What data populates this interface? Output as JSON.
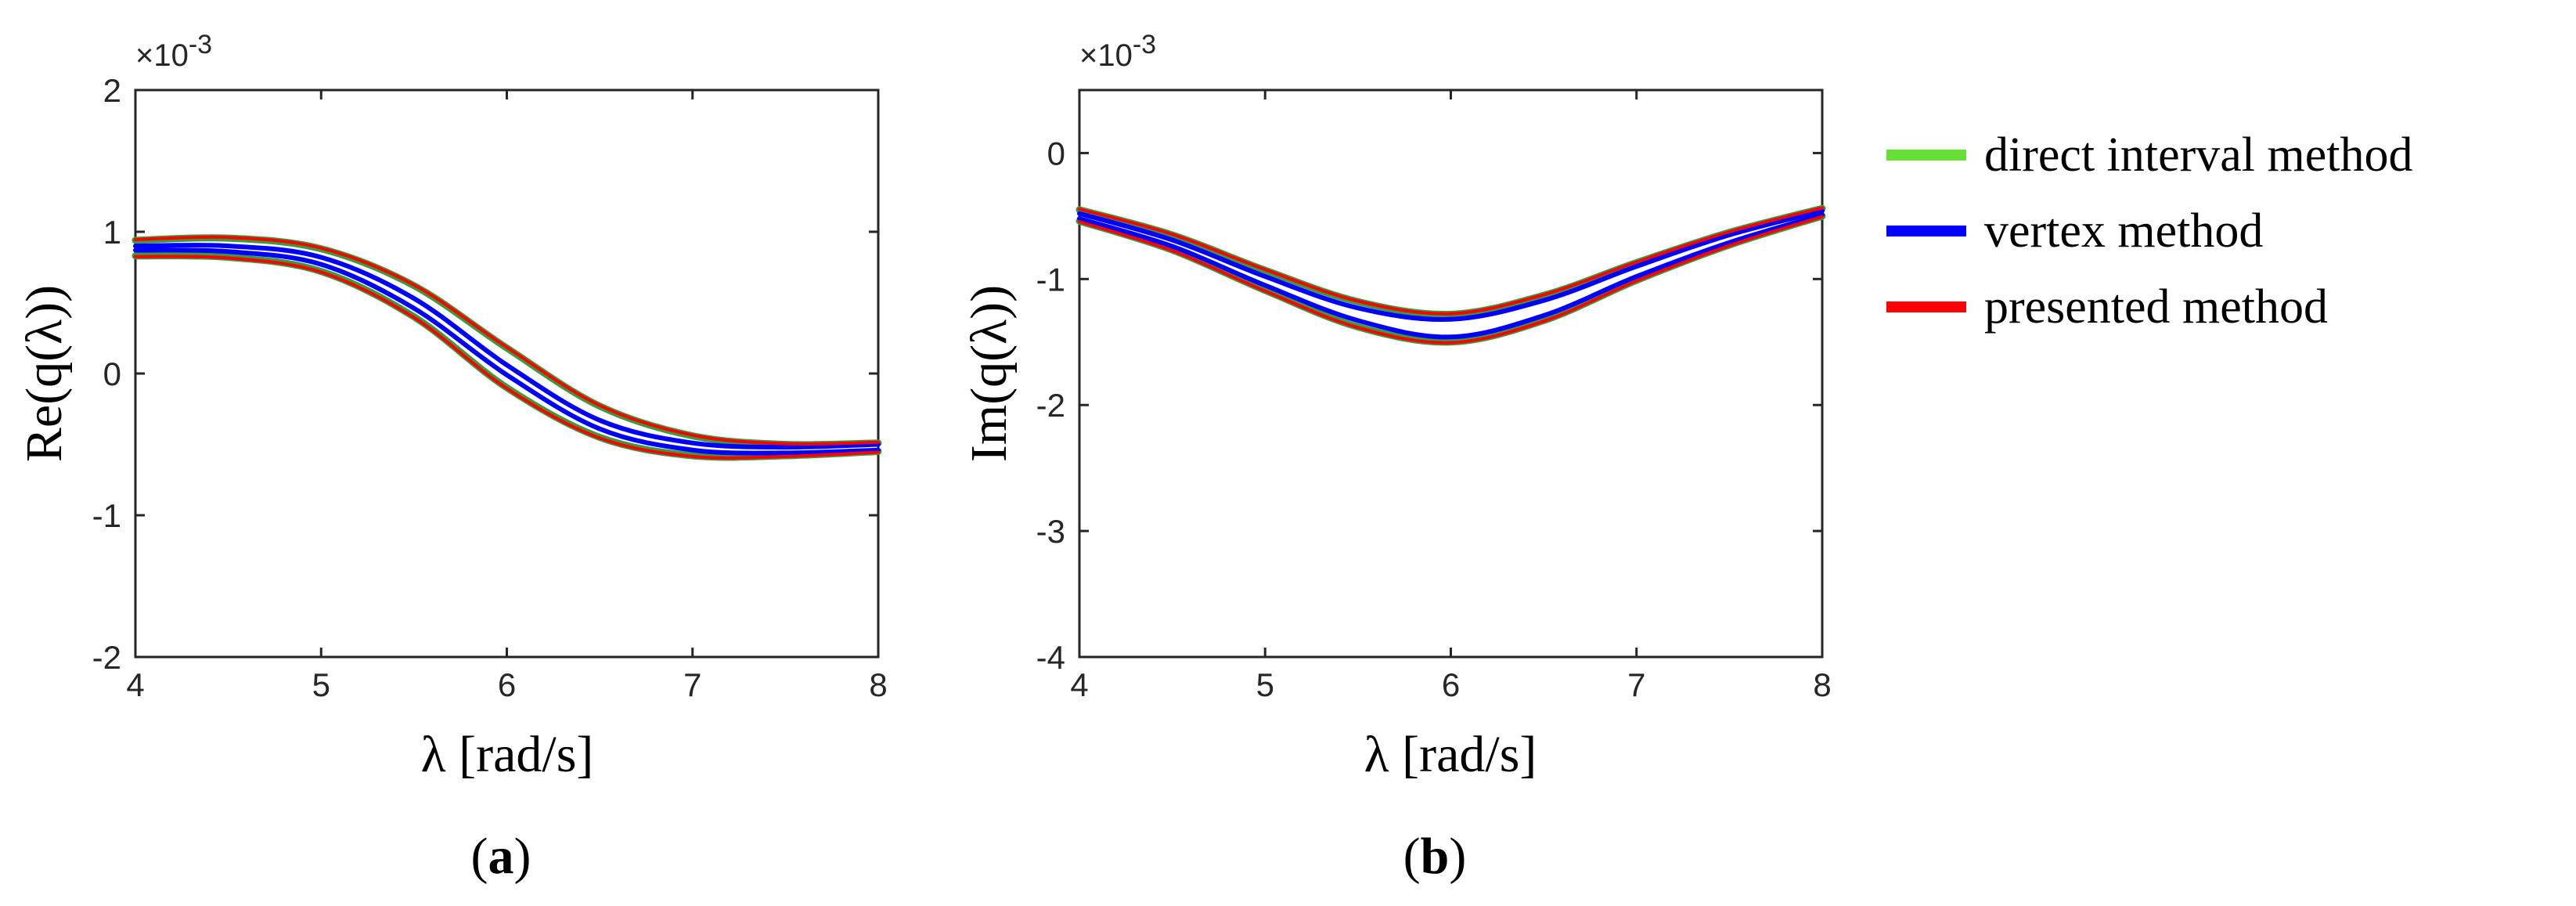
{
  "chart_data": [
    {
      "type": "line",
      "panel": "a",
      "caption_open": "(",
      "caption_letter": "a",
      "caption_close": ")",
      "ylabel": "Re(q(λ))",
      "xlabel": "λ [rad/s]",
      "multiplier_base": "×10",
      "multiplier_exp": "-3",
      "xlim": [
        4,
        8
      ],
      "ylim": [
        -2,
        2
      ],
      "xticks": [
        "4",
        "5",
        "6",
        "7",
        "8"
      ],
      "yticks": [
        "-2",
        "-1",
        "0",
        "1",
        "2"
      ],
      "x": [
        4.0,
        4.5,
        5.0,
        5.5,
        6.0,
        6.5,
        7.0,
        7.5,
        8.0
      ],
      "series": [
        {
          "name": "direct interval method",
          "bound": "upper",
          "values": [
            0.94,
            0.955,
            0.88,
            0.62,
            0.18,
            -0.23,
            -0.44,
            -0.5,
            -0.49
          ]
        },
        {
          "name": "direct interval method",
          "bound": "lower",
          "values": [
            0.83,
            0.82,
            0.72,
            0.4,
            -0.1,
            -0.45,
            -0.58,
            -0.58,
            -0.55
          ]
        },
        {
          "name": "vertex method",
          "bound": "upper",
          "values": [
            0.9,
            0.9,
            0.82,
            0.53,
            0.06,
            -0.33,
            -0.49,
            -0.52,
            -0.5
          ]
        },
        {
          "name": "vertex method",
          "bound": "lower",
          "values": [
            0.87,
            0.86,
            0.77,
            0.46,
            -0.01,
            -0.39,
            -0.54,
            -0.56,
            -0.54
          ]
        },
        {
          "name": "presented method",
          "bound": "upper",
          "values": [
            0.945,
            0.96,
            0.885,
            0.625,
            0.185,
            -0.225,
            -0.435,
            -0.495,
            -0.485
          ]
        },
        {
          "name": "presented method",
          "bound": "lower",
          "values": [
            0.825,
            0.815,
            0.715,
            0.395,
            -0.105,
            -0.455,
            -0.585,
            -0.585,
            -0.555
          ]
        }
      ]
    },
    {
      "type": "line",
      "panel": "b",
      "caption_open": "(",
      "caption_letter": "b",
      "caption_close": ")",
      "ylabel": "Im(q(λ))",
      "xlabel": "λ [rad/s]",
      "multiplier_base": "×10",
      "multiplier_exp": "-3",
      "xlim": [
        4,
        8
      ],
      "ylim": [
        -4,
        0.5
      ],
      "xticks": [
        "4",
        "5",
        "6",
        "7",
        "8"
      ],
      "yticks": [
        "-4",
        "-3",
        "-2",
        "-1",
        "0"
      ],
      "x": [
        4.0,
        4.5,
        5.0,
        5.5,
        6.0,
        6.5,
        7.0,
        7.5,
        8.0
      ],
      "series": [
        {
          "name": "direct interval method",
          "bound": "upper",
          "values": [
            -0.45,
            -0.65,
            -0.93,
            -1.18,
            -1.28,
            -1.13,
            -0.87,
            -0.63,
            -0.44
          ]
        },
        {
          "name": "direct interval method",
          "bound": "lower",
          "values": [
            -0.54,
            -0.77,
            -1.09,
            -1.38,
            -1.5,
            -1.33,
            -1.01,
            -0.73,
            -0.5
          ]
        },
        {
          "name": "vertex method",
          "bound": "upper",
          "values": [
            -0.48,
            -0.69,
            -0.98,
            -1.23,
            -1.32,
            -1.17,
            -0.9,
            -0.65,
            -0.46
          ]
        },
        {
          "name": "vertex method",
          "bound": "lower",
          "values": [
            -0.52,
            -0.74,
            -1.05,
            -1.33,
            -1.46,
            -1.29,
            -0.98,
            -0.71,
            -0.49
          ]
        },
        {
          "name": "presented method",
          "bound": "upper",
          "values": [
            -0.445,
            -0.645,
            -0.925,
            -1.175,
            -1.275,
            -1.125,
            -0.865,
            -0.625,
            -0.435
          ]
        },
        {
          "name": "presented method",
          "bound": "lower",
          "values": [
            -0.545,
            -0.775,
            -1.095,
            -1.385,
            -1.505,
            -1.335,
            -1.015,
            -0.735,
            -0.505
          ]
        }
      ]
    }
  ],
  "legend": {
    "placement": "right",
    "items": [
      {
        "label": "direct interval method",
        "color": "#66e033"
      },
      {
        "label": "vertex method",
        "color": "#0000ff"
      },
      {
        "label": "presented method",
        "color": "#ff0000"
      }
    ]
  },
  "colors": {
    "direct interval method": "#3c9a3c",
    "vertex method": "#0000ff",
    "presented method": "#ff0000",
    "axis": "#262626"
  }
}
